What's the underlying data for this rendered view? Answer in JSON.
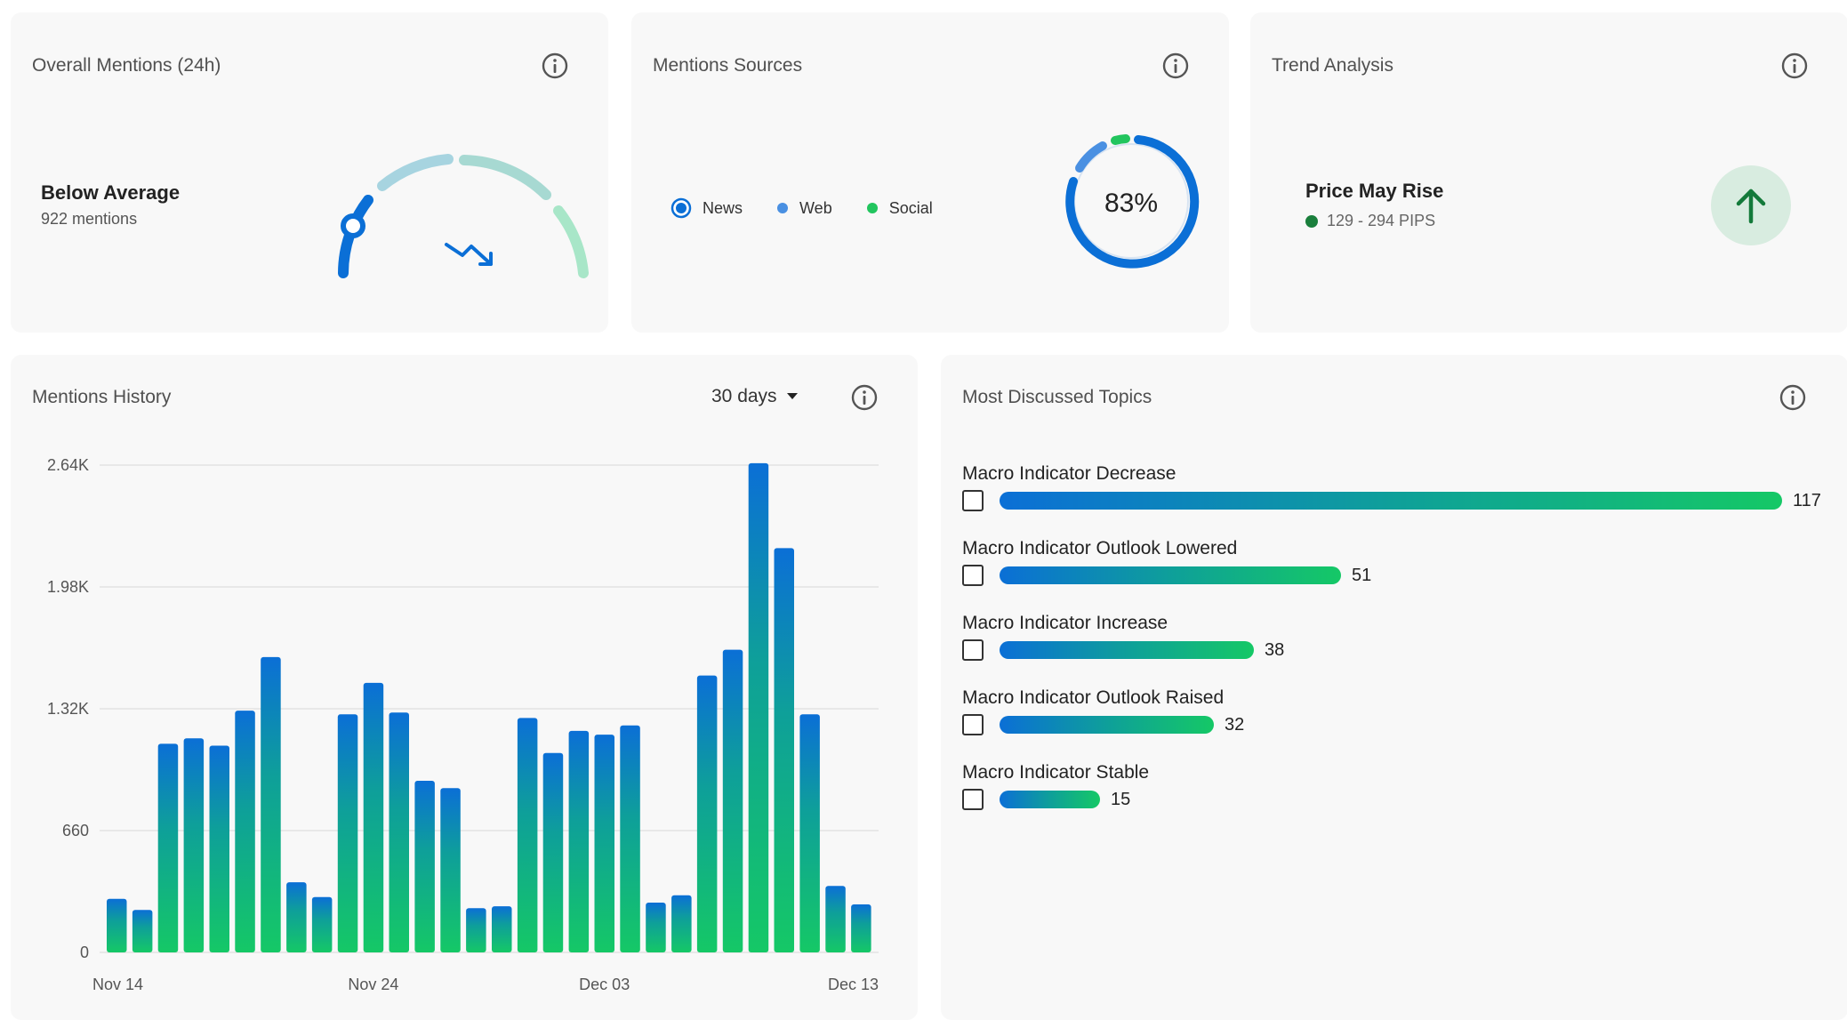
{
  "overall": {
    "title": "Overall Mentions (24h)",
    "status": "Below Average",
    "mentions": "922 mentions",
    "trend_icon": "trending-down-icon"
  },
  "sources": {
    "title": "Mentions Sources",
    "legend": [
      {
        "label": "News",
        "color": "#0b6fd6"
      },
      {
        "label": "Web",
        "color": "#4a90e2"
      },
      {
        "label": "Social",
        "color": "#22c55e"
      }
    ],
    "percent": "83%",
    "percent_value": 83
  },
  "trend": {
    "title": "Trend Analysis",
    "label": "Price May Rise",
    "range": "129 - 294 PIPS",
    "icon": "arrow-up-icon"
  },
  "history": {
    "title": "Mentions History",
    "range_select": "30 days",
    "chart_data": {
      "type": "bar",
      "ylim": [
        0,
        2640
      ],
      "yticks": [
        "0",
        "660",
        "1.32K",
        "1.98K",
        "2.64K"
      ],
      "xticks": [
        {
          "label": "Nov 14",
          "index": 0
        },
        {
          "label": "Nov 24",
          "index": 10
        },
        {
          "label": "Dec 03",
          "index": 19
        },
        {
          "label": "Dec 13",
          "index": 29
        }
      ],
      "values": [
        290,
        230,
        1130,
        1160,
        1120,
        1310,
        1600,
        380,
        300,
        1290,
        1460,
        1300,
        930,
        890,
        240,
        250,
        1270,
        1080,
        1200,
        1180,
        1230,
        270,
        310,
        1500,
        1640,
        2650,
        2190,
        1290,
        360,
        260
      ]
    }
  },
  "topics": {
    "title": "Most Discussed Topics",
    "max": 117,
    "items": [
      {
        "label": "Macro Indicator Decrease",
        "value": 117
      },
      {
        "label": "Macro Indicator Outlook Lowered",
        "value": 51
      },
      {
        "label": "Macro Indicator Increase",
        "value": 38
      },
      {
        "label": "Macro Indicator Outlook Raised",
        "value": 32
      },
      {
        "label": "Macro Indicator Stable",
        "value": 15
      }
    ]
  },
  "colors": {
    "accent_blue": "#0b6fd6",
    "accent_green": "#15c866",
    "teal": "#0e9f9a"
  }
}
